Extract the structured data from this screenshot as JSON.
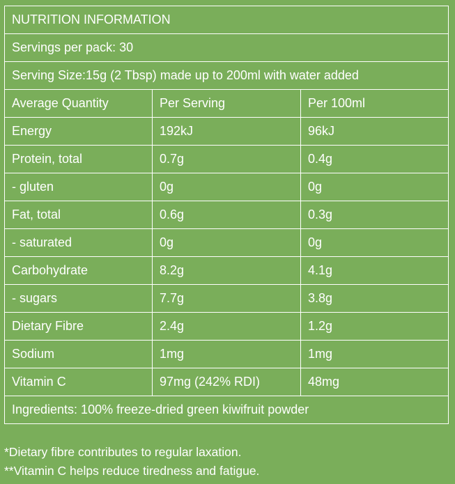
{
  "title": "NUTRITION INFORMATION",
  "servings_per_pack": "Servings per pack: 30",
  "serving_size": "Serving Size:15g (2 Tbsp) made up to 200ml with water added",
  "columns": [
    "Average Quantity",
    "Per Serving",
    "Per 100ml"
  ],
  "rows": [
    {
      "name": "Energy",
      "per_serving": "192kJ",
      "per_100ml": "96kJ"
    },
    {
      "name": "Protein, total",
      "per_serving": "0.7g",
      "per_100ml": "0.4g"
    },
    {
      "name": "- gluten",
      "per_serving": "0g",
      "per_100ml": "0g"
    },
    {
      "name": "Fat, total",
      "per_serving": "0.6g",
      "per_100ml": "0.3g"
    },
    {
      "name": "- saturated",
      "per_serving": "0g",
      "per_100ml": "0g"
    },
    {
      "name": "Carbohydrate",
      "per_serving": "8.2g",
      "per_100ml": "4.1g"
    },
    {
      "name": "- sugars",
      "per_serving": "7.7g",
      "per_100ml": "3.8g"
    },
    {
      "name": "Dietary Fibre",
      "per_serving": "2.4g",
      "per_100ml": "1.2g"
    },
    {
      "name": "Sodium",
      "per_serving": "1mg",
      "per_100ml": "1mg"
    },
    {
      "name": "Vitamin C",
      "per_serving": "97mg (242% RDI)",
      "per_100ml": "48mg"
    }
  ],
  "ingredients": "Ingredients: 100% freeze-dried green kiwifruit powder",
  "notes": [
    "*Dietary fibre contributes to regular laxation.",
    "**Vitamin C helps reduce tiredness and fatigue."
  ],
  "colors": {
    "background": "#7aae5a",
    "text": "#ffffff",
    "border": "#ffffff"
  }
}
